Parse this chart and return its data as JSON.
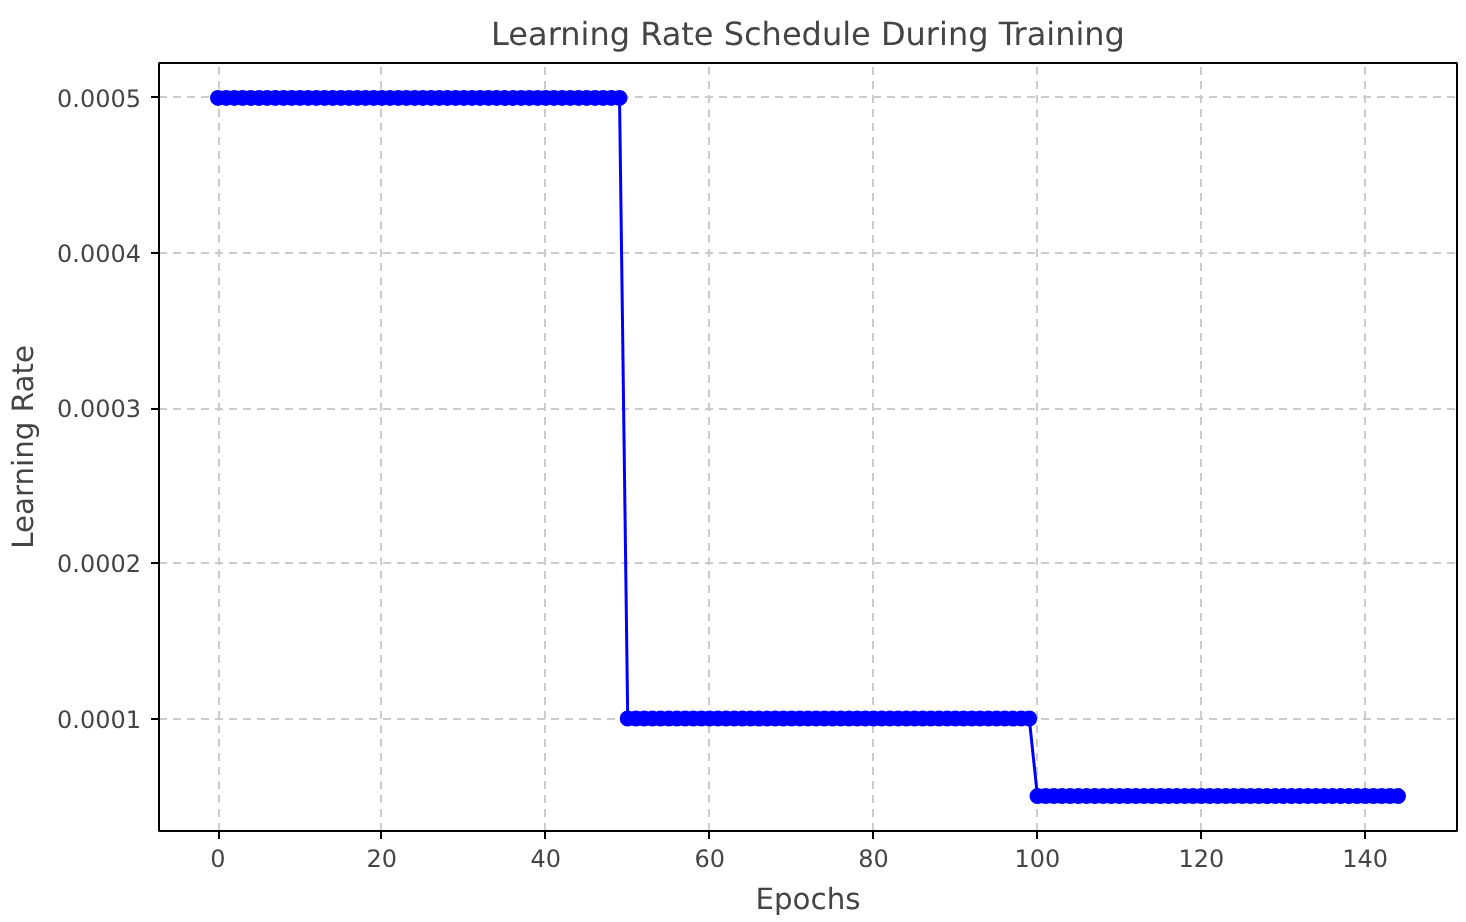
{
  "chart_data": {
    "type": "line",
    "title": "Learning Rate Schedule During Training",
    "xlabel": "Epochs",
    "ylabel": "Learning Rate",
    "x": [
      0,
      1,
      2,
      3,
      4,
      5,
      6,
      7,
      8,
      9,
      10,
      11,
      12,
      13,
      14,
      15,
      16,
      17,
      18,
      19,
      20,
      21,
      22,
      23,
      24,
      25,
      26,
      27,
      28,
      29,
      30,
      31,
      32,
      33,
      34,
      35,
      36,
      37,
      38,
      39,
      40,
      41,
      42,
      43,
      44,
      45,
      46,
      47,
      48,
      49,
      50,
      51,
      52,
      53,
      54,
      55,
      56,
      57,
      58,
      59,
      60,
      61,
      62,
      63,
      64,
      65,
      66,
      67,
      68,
      69,
      70,
      71,
      72,
      73,
      74,
      75,
      76,
      77,
      78,
      79,
      80,
      81,
      82,
      83,
      84,
      85,
      86,
      87,
      88,
      89,
      90,
      91,
      92,
      93,
      94,
      95,
      96,
      97,
      98,
      99,
      100,
      101,
      102,
      103,
      104,
      105,
      106,
      107,
      108,
      109,
      110,
      111,
      112,
      113,
      114,
      115,
      116,
      117,
      118,
      119,
      120,
      121,
      122,
      123,
      124,
      125,
      126,
      127,
      128,
      129,
      130,
      131,
      132,
      133,
      134,
      135,
      136,
      137,
      138,
      139,
      140,
      141,
      142,
      143,
      144
    ],
    "series": [
      {
        "color": "#0000ff",
        "values": [
          0.0005,
          0.0005,
          0.0005,
          0.0005,
          0.0005,
          0.0005,
          0.0005,
          0.0005,
          0.0005,
          0.0005,
          0.0005,
          0.0005,
          0.0005,
          0.0005,
          0.0005,
          0.0005,
          0.0005,
          0.0005,
          0.0005,
          0.0005,
          0.0005,
          0.0005,
          0.0005,
          0.0005,
          0.0005,
          0.0005,
          0.0005,
          0.0005,
          0.0005,
          0.0005,
          0.0005,
          0.0005,
          0.0005,
          0.0005,
          0.0005,
          0.0005,
          0.0005,
          0.0005,
          0.0005,
          0.0005,
          0.0005,
          0.0005,
          0.0005,
          0.0005,
          0.0005,
          0.0005,
          0.0005,
          0.0005,
          0.0005,
          0.0005,
          0.0001,
          0.0001,
          0.0001,
          0.0001,
          0.0001,
          0.0001,
          0.0001,
          0.0001,
          0.0001,
          0.0001,
          0.0001,
          0.0001,
          0.0001,
          0.0001,
          0.0001,
          0.0001,
          0.0001,
          0.0001,
          0.0001,
          0.0001,
          0.0001,
          0.0001,
          0.0001,
          0.0001,
          0.0001,
          0.0001,
          0.0001,
          0.0001,
          0.0001,
          0.0001,
          0.0001,
          0.0001,
          0.0001,
          0.0001,
          0.0001,
          0.0001,
          0.0001,
          0.0001,
          0.0001,
          0.0001,
          0.0001,
          0.0001,
          0.0001,
          0.0001,
          0.0001,
          0.0001,
          0.0001,
          0.0001,
          0.0001,
          0.0001,
          5e-05,
          5e-05,
          5e-05,
          5e-05,
          5e-05,
          5e-05,
          5e-05,
          5e-05,
          5e-05,
          5e-05,
          5e-05,
          5e-05,
          5e-05,
          5e-05,
          5e-05,
          5e-05,
          5e-05,
          5e-05,
          5e-05,
          5e-05,
          5e-05,
          5e-05,
          5e-05,
          5e-05,
          5e-05,
          5e-05,
          5e-05,
          5e-05,
          5e-05,
          5e-05,
          5e-05,
          5e-05,
          5e-05,
          5e-05,
          5e-05,
          5e-05,
          5e-05,
          5e-05,
          5e-05,
          5e-05,
          5e-05,
          5e-05,
          5e-05,
          5e-05,
          5e-05
        ]
      }
    ],
    "xlim": [
      -7.2,
      151.2
    ],
    "ylim": [
      2.75e-05,
      0.0005225
    ],
    "xticks": [
      0,
      20,
      40,
      60,
      80,
      100,
      120,
      140
    ],
    "yticks": [
      0.0001,
      0.0002,
      0.0003,
      0.0004,
      0.0005
    ],
    "grid": true,
    "marker": "circle",
    "line_style": "solid"
  }
}
